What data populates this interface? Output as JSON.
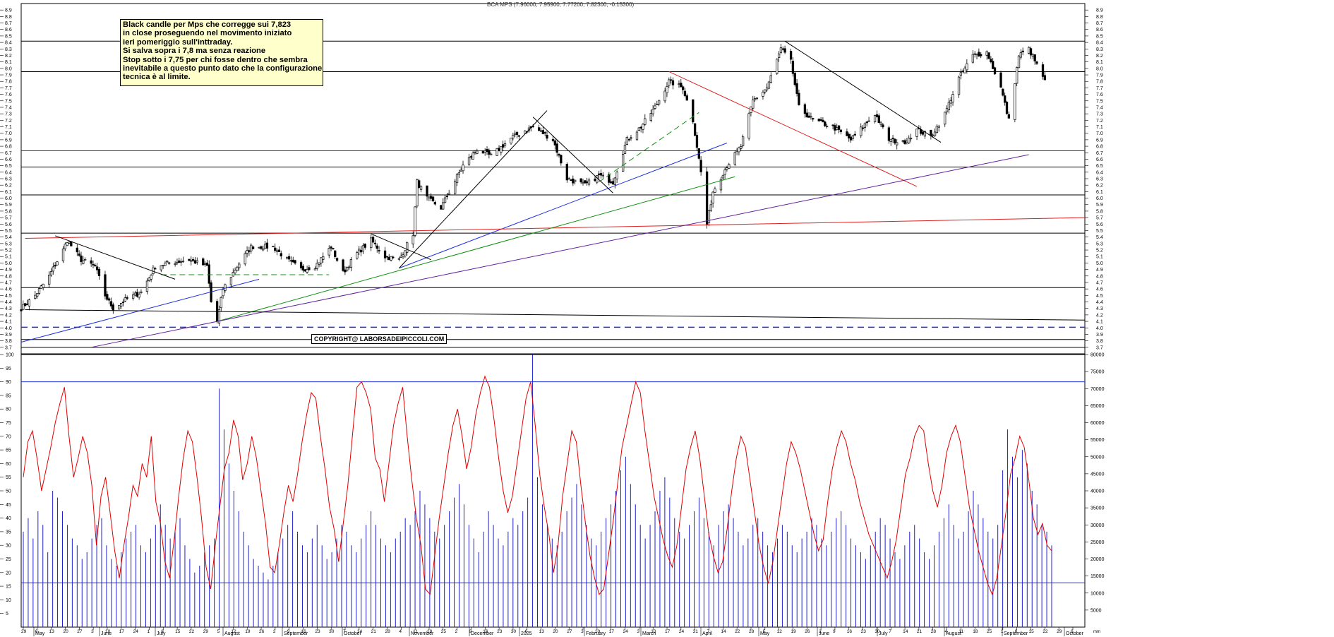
{
  "note": {
    "lines": [
      "Black candle per Mps che corregge sui 7,823",
      "in close proseguendo nel movimento iniziato",
      "ieri pomeriggio sull'inttraday.",
      "Si salva sopra i 7,8 ma senza reazione",
      "Stop sotto i 7,75 per chi fosse dentro che sembra",
      "inevitabile a questo punto dato che la configurazione",
      "tecnica è al limite."
    ]
  },
  "copyright": "COPYRIGHT@ LABORSADEIPICCOLI.COM",
  "colors": {
    "candle": "#000000",
    "oscillator": "#e00000",
    "volume": "#2020d0",
    "blue_line": "#2030e0",
    "red_line": "#e02020",
    "green_line": "#109010",
    "purple_line": "#6020a0",
    "annotation_bg": "#ffffcc"
  },
  "chart_data": [
    {
      "type": "candlestick",
      "title": "BCA MPS (7.96000, 7.95900, 7.77200, 7.82300, -0.15300)",
      "ylim": [
        3.6,
        9.0
      ],
      "y_ticks": [
        3.7,
        3.8,
        3.9,
        4.0,
        4.1,
        4.2,
        4.3,
        4.4,
        4.5,
        4.6,
        4.7,
        4.8,
        4.9,
        5.0,
        5.1,
        5.2,
        5.3,
        5.4,
        5.5,
        5.6,
        5.7,
        5.8,
        5.9,
        6.0,
        6.1,
        6.2,
        6.3,
        6.4,
        6.5,
        6.6,
        6.7,
        6.8,
        6.9,
        7.0,
        7.1,
        7.2,
        7.3,
        7.4,
        7.5,
        7.6,
        7.7,
        7.8,
        7.9,
        8.0,
        8.1,
        8.2,
        8.3,
        8.4,
        8.5,
        8.6,
        8.7,
        8.8,
        8.9
      ],
      "x_range": [
        "2024-04-29",
        "2025-10-13"
      ],
      "close_path": [
        [
          "2024-04-29",
          4.3
        ],
        [
          "2024-05-06",
          4.5
        ],
        [
          "2024-05-13",
          4.8
        ],
        [
          "2024-05-20",
          5.2
        ],
        [
          "2024-05-22",
          5.35
        ],
        [
          "2024-05-29",
          5.05
        ],
        [
          "2024-06-05",
          4.95
        ],
        [
          "2024-06-10",
          4.5
        ],
        [
          "2024-06-14",
          4.3
        ],
        [
          "2024-06-21",
          4.45
        ],
        [
          "2024-06-28",
          4.55
        ],
        [
          "2024-07-05",
          4.95
        ],
        [
          "2024-07-12",
          5.0
        ],
        [
          "2024-07-22",
          5.05
        ],
        [
          "2024-07-31",
          4.95
        ],
        [
          "2024-08-02",
          4.4
        ],
        [
          "2024-08-05",
          4.1
        ],
        [
          "2024-08-08",
          4.6
        ],
        [
          "2024-08-15",
          4.95
        ],
        [
          "2024-08-22",
          5.25
        ],
        [
          "2024-09-02",
          5.25
        ],
        [
          "2024-09-09",
          5.05
        ],
        [
          "2024-09-16",
          4.9
        ],
        [
          "2024-09-23",
          4.95
        ],
        [
          "2024-10-01",
          5.25
        ],
        [
          "2024-10-07",
          4.85
        ],
        [
          "2024-10-14",
          5.15
        ],
        [
          "2024-10-21",
          5.35
        ],
        [
          "2024-10-28",
          5.1
        ],
        [
          "2024-11-04",
          5.05
        ],
        [
          "2024-11-11",
          5.45
        ],
        [
          "2024-11-13",
          6.25
        ],
        [
          "2024-11-18",
          6.0
        ],
        [
          "2024-11-25",
          5.85
        ],
        [
          "2024-11-29",
          6.1
        ],
        [
          "2024-12-06",
          6.5
        ],
        [
          "2024-12-13",
          6.75
        ],
        [
          "2024-12-20",
          6.65
        ],
        [
          "2024-12-31",
          6.95
        ],
        [
          "2025-01-10",
          7.1
        ],
        [
          "2025-01-20",
          6.9
        ],
        [
          "2025-01-27",
          6.3
        ],
        [
          "2025-02-05",
          6.2
        ],
        [
          "2025-02-12",
          6.35
        ],
        [
          "2025-02-19",
          6.25
        ],
        [
          "2025-02-26",
          6.9
        ],
        [
          "2025-03-05",
          7.1
        ],
        [
          "2025-03-12",
          7.4
        ],
        [
          "2025-03-19",
          7.8
        ],
        [
          "2025-03-26",
          7.7
        ],
        [
          "2025-03-31",
          7.2
        ],
        [
          "2025-04-04",
          6.4
        ],
        [
          "2025-04-07",
          5.6
        ],
        [
          "2025-04-10",
          6.1
        ],
        [
          "2025-04-17",
          6.5
        ],
        [
          "2025-04-24",
          6.8
        ],
        [
          "2025-04-30",
          7.5
        ],
        [
          "2025-05-07",
          7.7
        ],
        [
          "2025-05-14",
          8.3
        ],
        [
          "2025-05-19",
          8.1
        ],
        [
          "2025-05-23",
          7.4
        ],
        [
          "2025-05-30",
          7.2
        ],
        [
          "2025-06-09",
          7.1
        ],
        [
          "2025-06-18",
          6.9
        ],
        [
          "2025-06-30",
          7.3
        ],
        [
          "2025-07-07",
          6.9
        ],
        [
          "2025-07-14",
          6.85
        ],
        [
          "2025-07-21",
          7.05
        ],
        [
          "2025-07-28",
          6.95
        ],
        [
          "2025-08-04",
          7.3
        ],
        [
          "2025-08-11",
          7.85
        ],
        [
          "2025-08-18",
          8.2
        ],
        [
          "2025-08-25",
          8.25
        ],
        [
          "2025-09-01",
          7.7
        ],
        [
          "2025-09-05",
          7.2
        ],
        [
          "2025-09-10",
          8.2
        ],
        [
          "2025-09-15",
          8.3
        ],
        [
          "2025-09-19",
          8.05
        ],
        [
          "2025-09-23",
          7.823
        ]
      ],
      "horizontal_levels": [
        8.42,
        7.95,
        6.73,
        6.48,
        6.05,
        5.46,
        4.62,
        4.01,
        3.82,
        3.7
      ]
    },
    {
      "type": "line",
      "series": [
        {
          "values": [
            55,
            68,
            72,
            62,
            50,
            58,
            66,
            75,
            82,
            88,
            70,
            55,
            62,
            70,
            64,
            52,
            30,
            48,
            55,
            42,
            28,
            18,
            30,
            40,
            52,
            48,
            60,
            55,
            70,
            46,
            38,
            24,
            18,
            32,
            48,
            62,
            72,
            68,
            55,
            40,
            22,
            14,
            30,
            44,
            58,
            64,
            76,
            70,
            54,
            60,
            70,
            62,
            50,
            38,
            22,
            20,
            30,
            42,
            52,
            46,
            56,
            68,
            78,
            86,
            84,
            70,
            58,
            44,
            36,
            24,
            38,
            52,
            70,
            88,
            90,
            86,
            80,
            62,
            58,
            46,
            60,
            74,
            82,
            88,
            70,
            54,
            40,
            30,
            14,
            12,
            26,
            40,
            52,
            64,
            74,
            80,
            70,
            58,
            66,
            78,
            86,
            92,
            88,
            76,
            62,
            50,
            42,
            48,
            60,
            72,
            84,
            90,
            74,
            56,
            44,
            34,
            20,
            30,
            48,
            60,
            72,
            68,
            52,
            38,
            26,
            18,
            12,
            14,
            26,
            38,
            52,
            66,
            74,
            82,
            90,
            86,
            72,
            60,
            48,
            40,
            32,
            26,
            22,
            30,
            44,
            58,
            66,
            72,
            62,
            48,
            34,
            26,
            20,
            24,
            36,
            50,
            62,
            70,
            66,
            54,
            42,
            30,
            22,
            16,
            24,
            36,
            48,
            60,
            68,
            64,
            58,
            50,
            42,
            34,
            28,
            32,
            46,
            58,
            66,
            72,
            68,
            60,
            54,
            46,
            40,
            34,
            30,
            26,
            22,
            18,
            24,
            32,
            44,
            56,
            62,
            70,
            74,
            72,
            60,
            50,
            44,
            52,
            64,
            70,
            74,
            68,
            56,
            44,
            36,
            28,
            22,
            16,
            12,
            18,
            30,
            42,
            56,
            62,
            70,
            66,
            54,
            40,
            34,
            38,
            30,
            28
          ]
        }
      ],
      "ylim": [
        0,
        100
      ],
      "y_ticks": [
        5,
        10,
        15,
        20,
        25,
        30,
        35,
        40,
        45,
        50,
        55,
        60,
        65,
        70,
        75,
        80,
        85,
        90,
        95,
        100
      ],
      "threshold": 90
    },
    {
      "type": "bar",
      "series": [
        {
          "values": [
            28,
            32,
            26,
            34,
            30,
            22,
            40,
            38,
            34,
            30,
            26,
            24,
            20,
            22,
            26,
            30,
            32,
            24,
            20,
            18,
            22,
            26,
            28,
            30,
            24,
            22,
            26,
            30,
            36,
            30,
            26,
            28,
            32,
            24,
            20,
            16,
            18,
            22,
            24,
            26,
            70,
            58,
            48,
            40,
            34,
            28,
            24,
            20,
            18,
            16,
            14,
            18,
            22,
            26,
            30,
            34,
            28,
            24,
            22,
            26,
            30,
            24,
            20,
            22,
            26,
            30,
            28,
            24,
            22,
            26,
            30,
            34,
            30,
            26,
            24,
            22,
            26,
            28,
            32,
            30,
            34,
            40,
            36,
            32,
            28,
            26,
            30,
            34,
            38,
            42,
            36,
            30,
            26,
            22,
            28,
            34,
            30,
            26,
            24,
            28,
            32,
            30,
            34,
            38,
            80,
            44,
            36,
            30,
            26,
            24,
            28,
            34,
            38,
            42,
            36,
            30,
            26,
            24,
            28,
            32,
            36,
            40,
            46,
            50,
            42,
            36,
            30,
            26,
            30,
            34,
            40,
            44,
            38,
            32,
            28,
            26,
            30,
            34,
            38,
            32,
            28,
            24,
            30,
            34,
            36,
            32,
            28,
            24,
            26,
            30,
            32,
            28,
            24,
            22,
            26,
            30,
            28,
            24,
            22,
            26,
            28,
            32,
            30,
            26,
            24,
            28,
            32,
            34,
            30,
            26,
            24,
            22,
            20,
            24,
            28,
            32,
            30,
            26,
            22,
            20,
            24,
            28,
            30,
            26,
            22,
            20,
            24,
            28,
            32,
            36,
            30,
            26,
            28,
            34,
            40,
            36,
            32,
            28,
            26,
            30,
            46,
            58,
            50,
            44,
            52,
            48,
            40,
            36,
            30,
            28,
            24
          ]
        }
      ],
      "ylim": [
        0,
        80000
      ],
      "y_ticks": [
        5000,
        10000,
        15000,
        20000,
        25000,
        30000,
        35000,
        40000,
        45000,
        50000,
        55000,
        60000,
        65000,
        70000,
        75000,
        80000
      ],
      "volume_unit_label": "mm",
      "threshold": 13000
    }
  ],
  "x_axis": {
    "month_labels": [
      "May",
      "June",
      "July",
      "August",
      "September",
      "October",
      "November",
      "December",
      "2025",
      "February",
      "March",
      "April",
      "May",
      "June",
      "July",
      "August",
      "September",
      "October"
    ],
    "day_labels": [
      "29",
      "6",
      "13",
      "20",
      "27",
      "3",
      "10",
      "17",
      "24",
      "1",
      "8",
      "15",
      "22",
      "29",
      "5",
      "12",
      "19",
      "26",
      "2",
      "9",
      "16",
      "23",
      "30",
      "7",
      "14",
      "21",
      "28",
      "4",
      "11",
      "18",
      "25",
      "2",
      "9",
      "16",
      "23",
      "30",
      "6",
      "13",
      "20",
      "27",
      "3",
      "10",
      "17",
      "24",
      "3",
      "10",
      "17",
      "24",
      "31",
      "7",
      "14",
      "22",
      "28",
      "5",
      "12",
      "19",
      "26",
      "2",
      "9",
      "16",
      "23",
      "30",
      "7",
      "14",
      "21",
      "28",
      "4",
      "11",
      "18",
      "25",
      "1",
      "8",
      "15",
      "22",
      "29",
      "6"
    ]
  }
}
